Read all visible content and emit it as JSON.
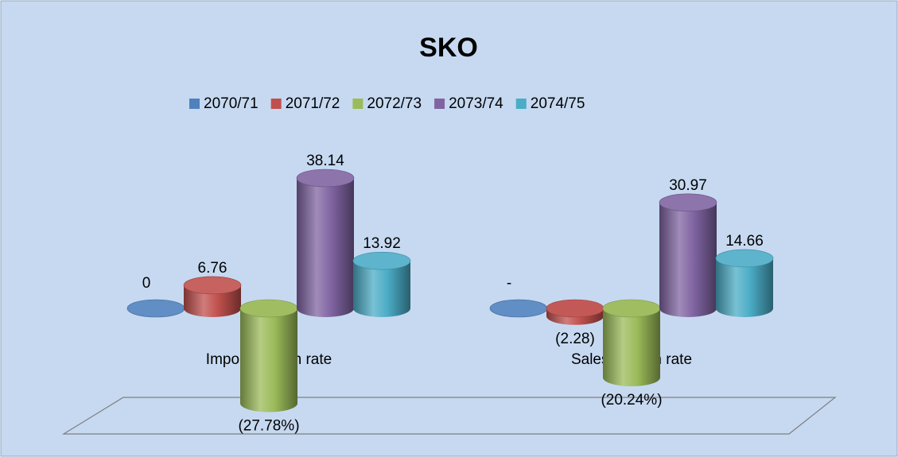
{
  "chart_data": {
    "type": "cylinder",
    "title": "SKO",
    "categories": [
      "Import Growth rate",
      "Sales Growth rate"
    ],
    "series": [
      {
        "name": "2070/71",
        "color": "#4f81bd",
        "values": [
          0,
          0
        ],
        "value_labels": [
          "0",
          "-"
        ]
      },
      {
        "name": "2071/72",
        "color": "#c0504d",
        "values": [
          6.76,
          -2.28
        ],
        "value_labels": [
          "6.76",
          "(2.28)"
        ]
      },
      {
        "name": "2072/73",
        "color": "#9bbb59",
        "values": [
          -27.78,
          -20.24
        ],
        "value_labels": [
          "(27.78%)",
          "(20.24%)"
        ]
      },
      {
        "name": "2073/74",
        "color": "#8064a2",
        "values": [
          38.14,
          30.97
        ],
        "value_labels": [
          "38.14",
          "30.97"
        ]
      },
      {
        "name": "2074/75",
        "color": "#4bacc6",
        "values": [
          13.92,
          14.66
        ],
        "value_labels": [
          "13.92",
          "14.66"
        ]
      }
    ],
    "legend": "top"
  }
}
